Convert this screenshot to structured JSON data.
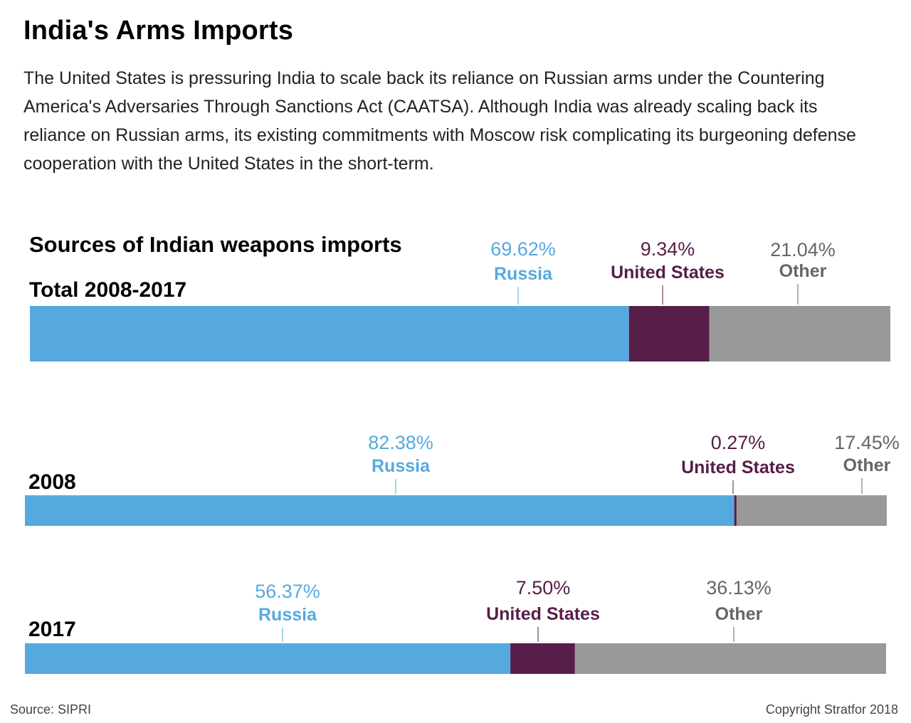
{
  "title": "India's Arms Imports",
  "subtitle": "The United States is pressuring India to scale back its reliance on Russian arms under the Countering America's Adversaries Through Sanctions Act (CAATSA). Although India was already scaling back its reliance on Russian arms, its existing commitments with Moscow risk complicating its burgeoning defense cooperation with the United States in the short-term.",
  "footer": {
    "source": "Source: SIPRI",
    "copyright": "Copyright Stratfor 2018"
  },
  "colors": {
    "russia": "#56a9df",
    "united_states": "#561e48",
    "other": "#999999",
    "other_label": "#666666"
  },
  "chart_data": {
    "type": "bar",
    "stacked": true,
    "orientation": "horizontal",
    "title": "Sources of Indian weapons imports",
    "categories": [
      "Total 2008-2017",
      "2008",
      "2017"
    ],
    "series": [
      {
        "name": "Russia",
        "values": [
          69.62,
          82.38,
          56.37
        ],
        "labels": [
          "69.62%",
          "82.38%",
          "56.37%"
        ]
      },
      {
        "name": "United States",
        "values": [
          9.34,
          0.27,
          7.5
        ],
        "labels": [
          "9.34%",
          "0.27%",
          "7.50%"
        ]
      },
      {
        "name": "Other",
        "values": [
          21.04,
          17.45,
          36.13
        ],
        "labels": [
          "21.04%",
          "17.45%",
          "36.13%"
        ]
      }
    ]
  }
}
